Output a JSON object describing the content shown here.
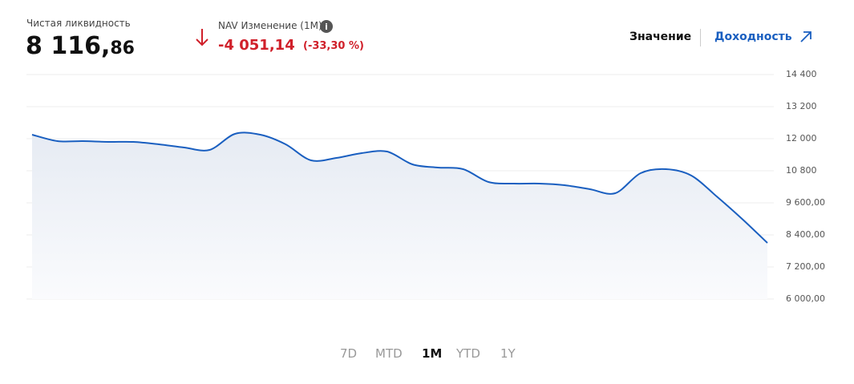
{
  "header": {
    "nav_label": "Чистая ликвидность",
    "nav_int": "8 116,",
    "nav_dec": "86",
    "change_label": "NAV Изменение (1M)",
    "change_value": "-4 051,14",
    "change_pct": "(-33,30 %)",
    "tabs": [
      "Значение",
      "Доходность"
    ]
  },
  "chart_data": {
    "type": "area",
    "color": "#1a5fc0",
    "grid": true,
    "values": [
      12150,
      11910,
      11910,
      11880,
      11880,
      11790,
      11670,
      11580,
      12180,
      12150,
      11790,
      11190,
      11280,
      11460,
      11520,
      11040,
      10920,
      10860,
      10380,
      10320,
      10320,
      10260,
      10110,
      9960,
      10710,
      10860,
      10620,
      9840,
      9000,
      8100
    ],
    "ylim": [
      6000,
      14400
    ],
    "yticks": [
      {
        "value": 6000,
        "label": "6 000,00"
      },
      {
        "value": 7200,
        "label": "7 200,00"
      },
      {
        "value": 8400,
        "label": "8 400,00"
      },
      {
        "value": 9600,
        "label": "9 600,00"
      },
      {
        "value": 10800,
        "label": "10 800"
      },
      {
        "value": 12000,
        "label": "12 000"
      },
      {
        "value": 13200,
        "label": "13 200"
      },
      {
        "value": 14400,
        "label": "14 400"
      }
    ]
  },
  "periods": {
    "items": [
      "7D",
      "MTD",
      "1M",
      "YTD",
      "1Y"
    ],
    "active": 2
  }
}
